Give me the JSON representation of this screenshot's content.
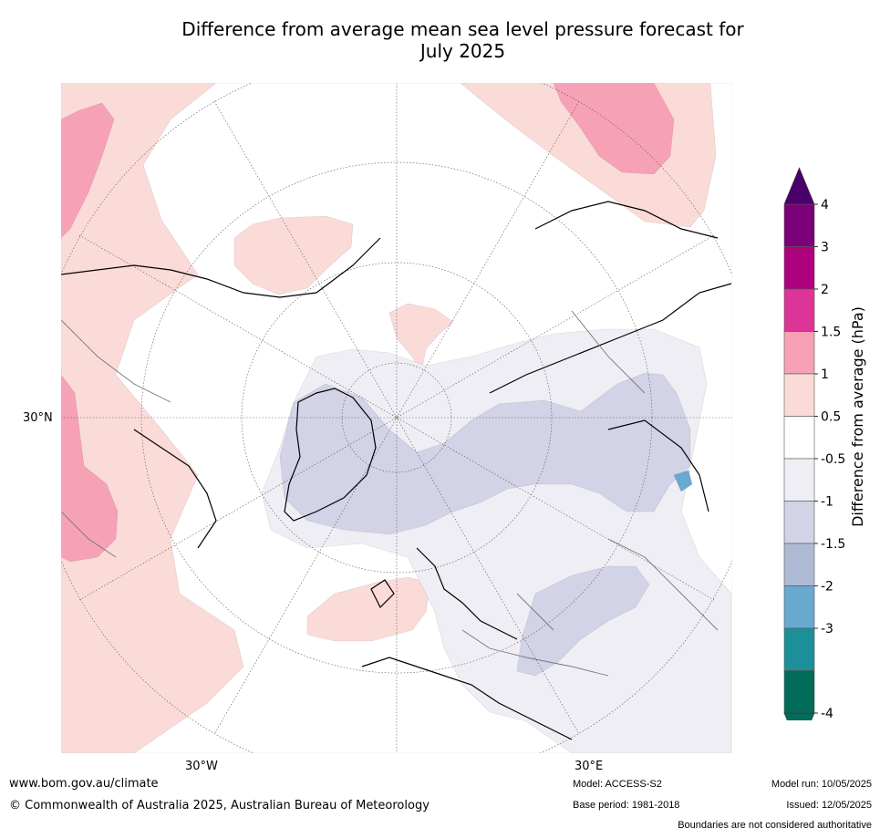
{
  "title": {
    "line1": "Difference from average mean sea level pressure forecast for",
    "line2": "July 2025"
  },
  "map": {
    "lat_labels": [
      "30°N"
    ],
    "lon_labels": [
      "30°W",
      "30°E"
    ],
    "region_colors": {
      "pos_0_5_1": "#fbdbd8",
      "pos_1_1_5": "#f7a1b7",
      "neg_0_5_1": "#f0eef5",
      "neg_1_1_5": "#d2d3e6",
      "neg_1_5_2": "#aebad4",
      "neg_2_3": "#6aa9d0"
    }
  },
  "colorbar": {
    "label": "Difference from average (hPa)",
    "ticks": [
      "4",
      "3",
      "2",
      "1.5",
      "1",
      "0.5",
      "-0.5",
      "-1",
      "-1.5",
      "-2",
      "-3",
      "-4"
    ],
    "colors": [
      "#7a0177",
      "#ae017e",
      "#dd3497",
      "#f7a1b7",
      "#fbdbd8",
      "#ffffff",
      "#f0eef5",
      "#d2d3e6",
      "#aebad4",
      "#6aa9d0",
      "#1b9099",
      "#016c59"
    ],
    "over_color": "#49006a",
    "under_color": "#016c59"
  },
  "footer": {
    "url": "www.bom.gov.au/climate",
    "copyright": "© Commonwealth of Australia 2025, Australian Bureau of Meteorology",
    "model": "Model: ACCESS-S2",
    "base_period": "Base period: 1981-2018",
    "model_run": "Model run: 10/05/2025",
    "issued": "Issued: 12/05/2025",
    "disclaimer": "Boundaries are not considered authoritative"
  }
}
